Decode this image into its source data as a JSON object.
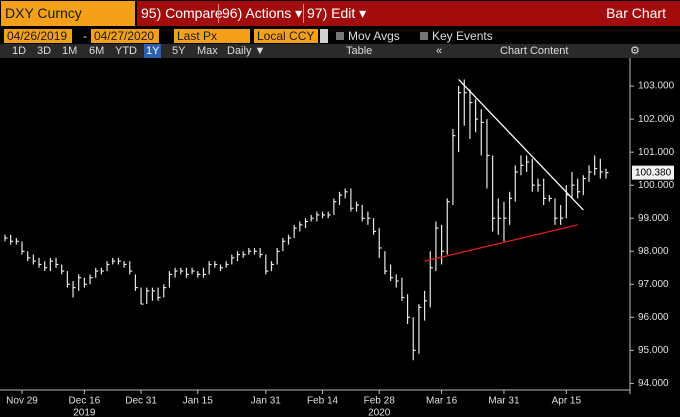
{
  "header": {
    "security": "DXY Curncy",
    "menu": [
      "95) Compare",
      "96) Actions ▾",
      "97) Edit ▾"
    ],
    "chart_kind": "Bar Chart"
  },
  "settings": {
    "start_date": "04/26/2019",
    "dash": "-",
    "end_date": "04/27/2020",
    "field": "Last Px",
    "currency": "Local CCY",
    "options": [
      "Mov Avgs",
      "Key Events"
    ]
  },
  "toolbar": {
    "ranges": [
      "1D",
      "3D",
      "1M",
      "6M",
      "YTD",
      "1Y",
      "5Y",
      "Max"
    ],
    "frequency": "Daily ▼",
    "table": "Table",
    "content": "Chart Content"
  },
  "chart_data": {
    "type": "hlc_bar",
    "color": "#e8e8e8",
    "categories": [
      null,
      null,
      null,
      "Nov 29",
      null,
      null,
      null,
      null,
      null,
      null,
      null,
      null,
      null,
      null,
      "Dec 16",
      null,
      null,
      null,
      null,
      null,
      null,
      null,
      null,
      null,
      "Dec 31",
      null,
      null,
      null,
      null,
      null,
      null,
      null,
      null,
      null,
      "Jan 15",
      null,
      null,
      null,
      null,
      null,
      null,
      null,
      null,
      null,
      null,
      null,
      "Jan 31",
      null,
      null,
      null,
      null,
      null,
      null,
      null,
      null,
      null,
      "Feb 14",
      null,
      null,
      null,
      null,
      null,
      null,
      null,
      null,
      null,
      "Feb 28",
      null,
      null,
      null,
      null,
      null,
      null,
      null,
      null,
      null,
      null,
      "Mar 16",
      null,
      null,
      null,
      null,
      null,
      null,
      null,
      null,
      null,
      null,
      "Mar 31",
      null,
      null,
      null,
      null,
      null,
      null,
      null,
      null,
      null,
      null,
      "Apr 15",
      null,
      null,
      null,
      null,
      null,
      null,
      null
    ],
    "year_categories": [
      null,
      null,
      null,
      null,
      null,
      null,
      null,
      null,
      null,
      null,
      null,
      null,
      null,
      null,
      "2019",
      null,
      null,
      null,
      null,
      null,
      null,
      null,
      null,
      null,
      null,
      null,
      null,
      null,
      null,
      null,
      null,
      null,
      null,
      null,
      null,
      null,
      null,
      null,
      null,
      null,
      null,
      null,
      null,
      null,
      null,
      null,
      null,
      null,
      null,
      null,
      null,
      null,
      null,
      null,
      null,
      null,
      null,
      null,
      null,
      null,
      null,
      null,
      null,
      null,
      null,
      null,
      "2020",
      null,
      null,
      null,
      null,
      null,
      null,
      null,
      null,
      null,
      null,
      null,
      null,
      null,
      null,
      null,
      null,
      null,
      null,
      null,
      null,
      null,
      null,
      null,
      null,
      null,
      null,
      null,
      null,
      null,
      null,
      null,
      null,
      null,
      null,
      null,
      null,
      null,
      null,
      null,
      null
    ],
    "close": [
      98.4,
      98.3,
      98.3,
      98.0,
      97.8,
      97.7,
      97.6,
      97.5,
      97.7,
      97.6,
      97.4,
      97.0,
      96.9,
      97.2,
      97.0,
      97.2,
      97.4,
      97.4,
      97.6,
      97.7,
      97.7,
      97.6,
      97.4,
      96.9,
      96.4,
      96.8,
      96.8,
      96.6,
      96.9,
      97.3,
      97.4,
      97.4,
      97.3,
      97.4,
      97.3,
      97.3,
      97.6,
      97.6,
      97.5,
      97.6,
      97.8,
      97.9,
      97.9,
      98.0,
      98.0,
      97.9,
      97.4,
      97.6,
      98.0,
      98.3,
      98.4,
      98.7,
      98.8,
      98.9,
      99.0,
      99.1,
      99.1,
      99.1,
      99.5,
      99.7,
      99.8,
      99.3,
      99.4,
      99.0,
      99.0,
      98.6,
      98.1,
      97.4,
      97.2,
      97.1,
      96.6,
      96.0,
      95.0,
      96.3,
      96.5,
      97.5,
      98.7,
      98.0,
      99.5,
      101.5,
      102.8,
      102.8,
      102.5,
      102.0,
      101.9,
      100.9,
      99.0,
      99.0,
      99.0,
      99.6,
      100.4,
      100.6,
      100.7,
      100.0,
      100.0,
      99.6,
      99.6,
      99.0,
      99.0,
      99.7,
      100.0,
      99.8,
      100.2,
      100.4,
      100.5,
      100.4,
      100.38
    ],
    "high": [
      98.5,
      98.5,
      98.4,
      98.3,
      98.0,
      97.9,
      97.8,
      97.7,
      97.8,
      97.8,
      97.6,
      97.4,
      97.1,
      97.3,
      97.2,
      97.3,
      97.5,
      97.5,
      97.7,
      97.8,
      97.8,
      97.7,
      97.7,
      97.3,
      96.9,
      96.9,
      96.9,
      96.9,
      97.0,
      97.4,
      97.5,
      97.5,
      97.5,
      97.5,
      97.4,
      97.5,
      97.7,
      97.7,
      97.6,
      97.7,
      97.9,
      98.0,
      98.0,
      98.1,
      98.1,
      98.1,
      97.9,
      97.7,
      98.1,
      98.4,
      98.5,
      98.8,
      98.9,
      99.0,
      99.1,
      99.2,
      99.2,
      99.2,
      99.6,
      99.8,
      99.9,
      99.9,
      99.5,
      99.4,
      99.2,
      99.0,
      98.7,
      98.0,
      97.6,
      97.3,
      97.2,
      96.7,
      96.0,
      96.4,
      96.8,
      98.0,
      98.9,
      98.8,
      99.6,
      101.7,
      103.0,
      103.2,
      102.9,
      102.6,
      102.3,
      102.0,
      100.9,
      99.6,
      99.5,
      99.8,
      100.6,
      100.9,
      100.9,
      100.8,
      100.2,
      100.2,
      99.7,
      99.6,
      99.4,
      100.0,
      100.4,
      100.2,
      100.3,
      100.6,
      100.9,
      100.8,
      100.5
    ],
    "low": [
      98.3,
      98.2,
      98.2,
      97.9,
      97.7,
      97.6,
      97.5,
      97.4,
      97.4,
      97.5,
      97.3,
      96.9,
      96.6,
      96.8,
      96.9,
      97.0,
      97.2,
      97.3,
      97.4,
      97.6,
      97.6,
      97.5,
      97.3,
      96.8,
      96.4,
      96.4,
      96.5,
      96.5,
      96.6,
      96.9,
      97.2,
      97.3,
      97.2,
      97.3,
      97.2,
      97.2,
      97.3,
      97.5,
      97.4,
      97.5,
      97.6,
      97.7,
      97.8,
      97.9,
      97.9,
      97.8,
      97.3,
      97.4,
      97.6,
      98.0,
      98.2,
      98.4,
      98.6,
      98.7,
      98.9,
      98.9,
      99.0,
      99.0,
      99.1,
      99.4,
      99.6,
      99.2,
      99.2,
      98.9,
      98.8,
      98.5,
      97.8,
      97.3,
      97.1,
      96.9,
      96.5,
      95.8,
      94.7,
      94.9,
      95.9,
      96.3,
      97.4,
      97.6,
      97.9,
      99.4,
      101.0,
      101.8,
      101.4,
      101.6,
      100.9,
      99.9,
      98.6,
      98.5,
      98.3,
      98.8,
      99.5,
      100.3,
      100.4,
      99.8,
      99.8,
      99.4,
      99.5,
      98.8,
      98.8,
      99.0,
      99.6,
      99.6,
      99.7,
      100.1,
      100.3,
      100.2,
      100.2
    ],
    "last_price": {
      "value": 100.38,
      "label": "100.380"
    },
    "ylim": [
      93.8,
      103.85
    ],
    "yticks": [
      {
        "value": 94,
        "label": "94.000"
      },
      {
        "value": 95,
        "label": "95.000"
      },
      {
        "value": 96,
        "label": "96.000"
      },
      {
        "value": 97,
        "label": "97.000"
      },
      {
        "value": 98,
        "label": "98.000"
      },
      {
        "value": 99,
        "label": "99.000"
      },
      {
        "value": 100,
        "label": "100.000"
      },
      {
        "value": 101,
        "label": "101.000"
      },
      {
        "value": 102,
        "label": "102.000"
      },
      {
        "value": 103,
        "label": "103.000"
      }
    ],
    "trendlines": [
      {
        "color": "#ffffff",
        "x": [
          80,
          102
        ],
        "y": [
          103.2,
          99.25
        ]
      },
      {
        "color": "#e0201b",
        "x": [
          74,
          101
        ],
        "y": [
          97.7,
          98.8
        ]
      }
    ],
    "grid": false
  }
}
